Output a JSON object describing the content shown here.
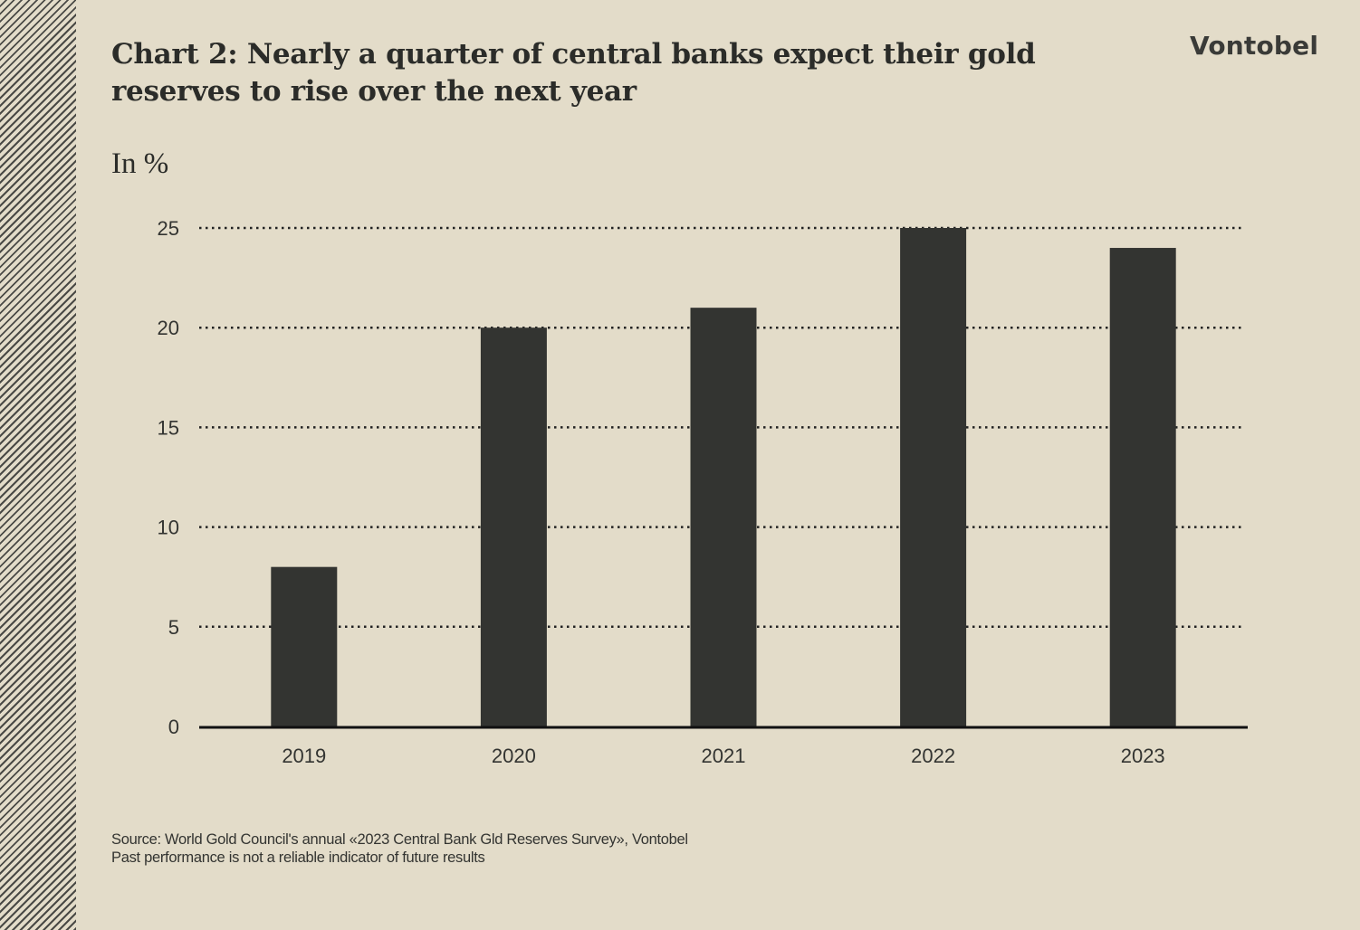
{
  "title": "Chart 2: Nearly a quarter of central banks expect their gold reserves to rise over the next year",
  "brand": "Vontobel",
  "chart_data": {
    "type": "bar",
    "title": "Chart 2: Nearly a quarter of central banks expect their gold reserves to rise over the next year",
    "ylabel": "In %",
    "xlabel": "",
    "categories": [
      "2019",
      "2020",
      "2021",
      "2022",
      "2023"
    ],
    "values": [
      8,
      20,
      21,
      25,
      24
    ],
    "ylim": [
      0,
      25
    ],
    "yticks": [
      0,
      5,
      10,
      15,
      20,
      25
    ],
    "grid": "horizontal-dotted",
    "legend": "none",
    "bar_color": "#333431"
  },
  "footer": {
    "source": "Source: World Gold Council's annual «2023 Central Bank Gld Reserves Survey», Vontobel",
    "disclaimer": "Past performance is not a reliable indicator of future results"
  }
}
